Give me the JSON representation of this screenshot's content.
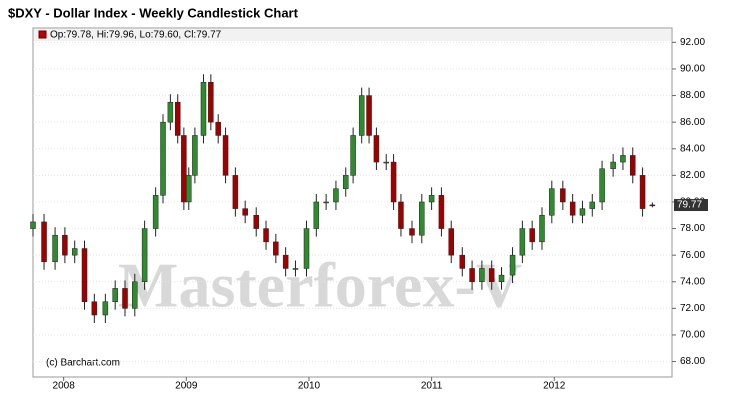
{
  "chart_data": {
    "type": "candlestick",
    "title": "$DXY - Dollar Index - Weekly Candlestick Chart",
    "legend_text": "Op:79.78, Hi:79.96, Lo:79.60, Cl:79.77",
    "legend_color": "#c00000",
    "last_label": "79.77",
    "credit": "(c) Barchart.com",
    "watermark": "Masterforex-V",
    "up_color": "#2e8b2e",
    "down_color": "#a00000",
    "x": [
      2007.75,
      2007.84,
      2007.93,
      2008.01,
      2008.09,
      2008.17,
      2008.25,
      2008.34,
      2008.42,
      2008.5,
      2008.58,
      2008.66,
      2008.75,
      2008.81,
      2008.87,
      2008.93,
      2008.98,
      2009.02,
      2009.07,
      2009.14,
      2009.2,
      2009.26,
      2009.32,
      2009.4,
      2009.48,
      2009.57,
      2009.65,
      2009.73,
      2009.81,
      2009.89,
      2009.98,
      2010.06,
      2010.14,
      2010.22,
      2010.3,
      2010.36,
      2010.43,
      2010.49,
      2010.55,
      2010.63,
      2010.69,
      2010.75,
      2010.84,
      2010.92,
      2011.0,
      2011.08,
      2011.16,
      2011.25,
      2011.33,
      2011.41,
      2011.49,
      2011.57,
      2011.66,
      2011.74,
      2011.82,
      2011.9,
      2011.98,
      2012.07,
      2012.15,
      2012.23,
      2012.31,
      2012.39,
      2012.48,
      2012.56,
      2012.64,
      2012.72,
      2012.8
    ],
    "open": [
      78,
      78.5,
      75.5,
      77.5,
      76,
      76.5,
      72.5,
      71.5,
      72.5,
      73.5,
      72,
      74,
      78,
      80.5,
      86,
      87.5,
      85,
      80,
      82,
      85,
      89,
      86,
      85,
      82,
      79.5,
      79,
      78,
      77,
      76,
      75,
      75,
      78,
      80,
      80,
      81,
      82,
      85,
      88,
      85,
      83,
      83,
      80,
      78,
      77.5,
      80,
      80.5,
      78,
      76,
      75,
      74,
      75,
      74,
      74.5,
      76,
      78,
      77,
      79,
      81,
      80,
      79,
      79.5,
      80,
      82.5,
      83,
      83.5,
      82,
      79.78
    ],
    "high": [
      79.1,
      79.1,
      78.1,
      78.1,
      77.1,
      77.1,
      73.1,
      73.1,
      74.1,
      74.1,
      74.6,
      78.6,
      81.1,
      86.6,
      88.1,
      88.1,
      85.6,
      82.6,
      85.6,
      89.6,
      89.6,
      86.6,
      85.6,
      82.6,
      80.1,
      79.6,
      78.6,
      77.6,
      76.6,
      75.6,
      78.6,
      80.6,
      80.6,
      81.6,
      82.6,
      85.6,
      88.6,
      88.6,
      85.6,
      83.6,
      83.6,
      80.6,
      78.6,
      80.6,
      81.1,
      81.1,
      78.6,
      76.6,
      75.6,
      75.6,
      75.6,
      75.1,
      76.6,
      78.6,
      78.6,
      79.6,
      81.6,
      81.6,
      80.6,
      80.1,
      80.6,
      83.1,
      83.6,
      84.1,
      84.1,
      82.6,
      79.96
    ],
    "low": [
      77.4,
      74.9,
      74.9,
      75.4,
      75.4,
      71.9,
      70.9,
      70.9,
      71.9,
      71.4,
      71.4,
      73.4,
      77.4,
      79.9,
      85.4,
      84.4,
      79.4,
      79.4,
      81.4,
      84.4,
      85.4,
      84.4,
      81.4,
      78.9,
      78.4,
      77.4,
      76.4,
      75.4,
      74.4,
      74.4,
      74.4,
      77.4,
      79.4,
      79.4,
      80.4,
      81.4,
      84.4,
      84.4,
      82.4,
      82.4,
      79.4,
      77.4,
      76.9,
      76.9,
      79.4,
      77.4,
      75.4,
      74.4,
      73.4,
      73.4,
      73.4,
      73.4,
      73.9,
      75.4,
      76.4,
      76.4,
      78.4,
      79.4,
      78.4,
      78.4,
      78.9,
      79.4,
      81.9,
      82.4,
      81.4,
      78.9,
      79.6
    ],
    "close": [
      78.5,
      75.5,
      77.5,
      76,
      76.5,
      72.5,
      71.5,
      72.5,
      73.5,
      72,
      74,
      78,
      80.5,
      86,
      87.5,
      85,
      80,
      82,
      85,
      89,
      86,
      85,
      82,
      79.5,
      79,
      78,
      77,
      76,
      75,
      75,
      78,
      80,
      80,
      81,
      82,
      85,
      88,
      85,
      83,
      83,
      80,
      78,
      77.5,
      80,
      80.5,
      78,
      76,
      75,
      74,
      75,
      74,
      74.5,
      76,
      78,
      77,
      79,
      81,
      80,
      79,
      79.5,
      80,
      82.5,
      83,
      83.5,
      82,
      79.5,
      79.77
    ],
    "xlim": [
      2007.75,
      2012.96
    ],
    "xticks": [
      2008,
      2009,
      2010,
      2011,
      2012
    ],
    "ylim": [
      66.84,
      93.08
    ],
    "yticks": [
      {
        "value": 68,
        "label": "68.00"
      },
      {
        "value": 70,
        "label": "70.00"
      },
      {
        "value": 72,
        "label": "72.00"
      },
      {
        "value": 74,
        "label": "74.00"
      },
      {
        "value": 76,
        "label": "76.00"
      },
      {
        "value": 78,
        "label": "78.00"
      },
      {
        "value": 80,
        "label": "80.00"
      },
      {
        "value": 82,
        "label": "82.00"
      },
      {
        "value": 84,
        "label": "84.00"
      },
      {
        "value": 86,
        "label": "86.00"
      },
      {
        "value": 88,
        "label": "88.00"
      },
      {
        "value": 90,
        "label": "90.00"
      },
      {
        "value": 92,
        "label": "92.00"
      }
    ],
    "grid": true
  }
}
